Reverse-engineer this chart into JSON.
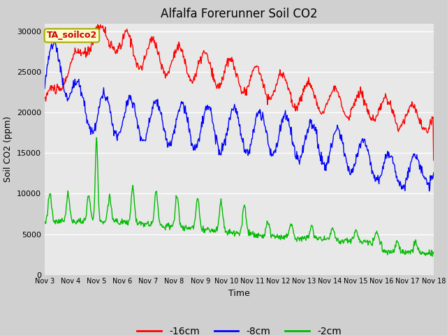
{
  "title": "Alfalfa Forerunner Soil CO2",
  "xlabel": "Time",
  "ylabel": "Soil CO2 (ppm)",
  "ylim": [
    0,
    31000
  ],
  "yticks": [
    0,
    5000,
    10000,
    15000,
    20000,
    25000,
    30000
  ],
  "x_labels": [
    "Nov 3",
    "Nov 4",
    "Nov 5",
    "Nov 6",
    "Nov 7",
    "Nov 8",
    "Nov 9",
    "Nov 10",
    "Nov 11",
    "Nov 12",
    "Nov 13",
    "Nov 14",
    "Nov 15",
    "Nov 16",
    "Nov 17",
    "Nov 18"
  ],
  "legend_labels": [
    "-16cm",
    "-8cm",
    "-2cm"
  ],
  "line_colors": [
    "#ff0000",
    "#0000ff",
    "#00bb00"
  ],
  "annotation_text": "TA_soilco2",
  "annotation_color": "#cc0000",
  "annotation_bg": "#ffffcc",
  "fig_bg": "#d0d0d0",
  "plot_bg": "#e8e8e8",
  "title_fontsize": 12,
  "label_fontsize": 9,
  "tick_fontsize": 8
}
